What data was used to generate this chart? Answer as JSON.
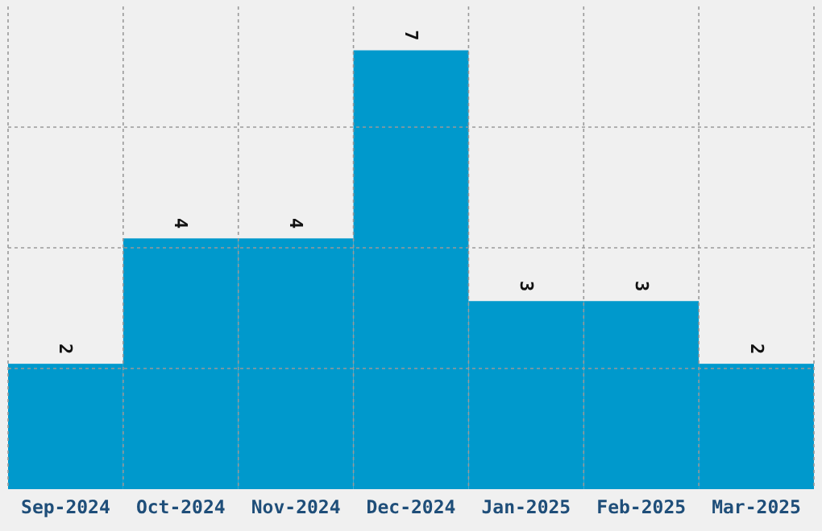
{
  "chart_data": {
    "type": "bar",
    "categories": [
      "Sep-2024",
      "Oct-2024",
      "Nov-2024",
      "Dec-2024",
      "Jan-2025",
      "Feb-2025",
      "Mar-2025"
    ],
    "values": [
      2,
      4,
      4,
      7,
      3,
      3,
      2
    ],
    "color": "#0099cc",
    "data_labels": true,
    "grid": true,
    "ylim": [
      0,
      7.7
    ],
    "yticks": [
      {
        "value": 1.925,
        "label": null
      },
      {
        "value": 3.85,
        "label": null
      },
      {
        "value": 5.775,
        "label": null
      }
    ],
    "tick_labels": "x"
  }
}
